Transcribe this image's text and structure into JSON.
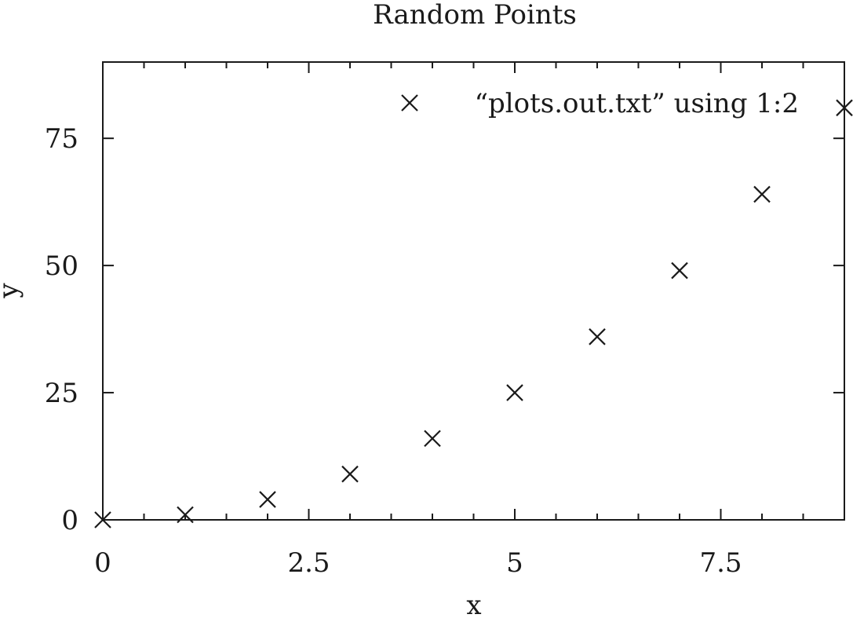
{
  "chart_data": {
    "type": "scatter",
    "title": "Random Points",
    "xlabel": "x",
    "ylabel": "y",
    "xlim": [
      0,
      9
    ],
    "ylim": [
      0,
      90
    ],
    "x_ticks": [
      0,
      2.5,
      5,
      7.5
    ],
    "x_tick_labels": [
      "0",
      "2.5",
      "5",
      "7.5"
    ],
    "x_minor_ticks": [
      0.5,
      1,
      1.5,
      2,
      3,
      3.5,
      4,
      4.5,
      5.5,
      6,
      6.5,
      7,
      8,
      8.5
    ],
    "y_ticks": [
      0,
      25,
      50,
      75
    ],
    "y_tick_labels": [
      "0",
      "25",
      "50",
      "75"
    ],
    "grid": false,
    "legend_position": "top-right",
    "series": [
      {
        "name": "“plots.out.txt” using 1:2",
        "marker": "x",
        "color": "#1a1a1a",
        "points": [
          {
            "x": 0,
            "y": 0
          },
          {
            "x": 1,
            "y": 1
          },
          {
            "x": 2,
            "y": 4
          },
          {
            "x": 3,
            "y": 9
          },
          {
            "x": 4,
            "y": 16
          },
          {
            "x": 5,
            "y": 25
          },
          {
            "x": 6,
            "y": 36
          },
          {
            "x": 7,
            "y": 49
          },
          {
            "x": 8,
            "y": 64
          },
          {
            "x": 9,
            "y": 81
          }
        ]
      }
    ]
  }
}
